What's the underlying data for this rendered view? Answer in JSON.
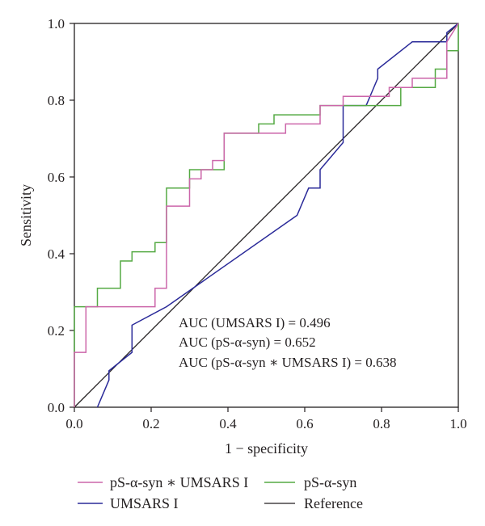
{
  "chart_data": {
    "type": "line",
    "title": "",
    "xlabel": "1 − specificity",
    "ylabel": "Sensitivity",
    "xlim": [
      0,
      1
    ],
    "ylim": [
      0,
      1
    ],
    "x_ticks": [
      0.0,
      0.2,
      0.4,
      0.6,
      0.8,
      1.0
    ],
    "y_ticks": [
      0.0,
      0.2,
      0.4,
      0.6,
      0.8,
      1.0
    ],
    "x_tick_labels": [
      "0.0",
      "0.2",
      "0.4",
      "0.6",
      "0.8",
      "1.0"
    ],
    "y_tick_labels": [
      "0.0",
      "0.2",
      "0.4",
      "0.6",
      "0.8",
      "1.0"
    ],
    "grid": false,
    "legend_position": "bottom",
    "annotations": [
      "AUC (UMSARS I) = 0.496",
      "AUC (pS-α-syn) = 0.652",
      "AUC (pS-α-syn ∗ UMSARS I) = 0.638"
    ],
    "series": [
      {
        "name": "pS-α-syn ∗ UMSARS I",
        "color": "#cc66aa",
        "x": [
          0,
          0,
          0.03,
          0.03,
          0.21,
          0.21,
          0.24,
          0.24,
          0.3,
          0.3,
          0.33,
          0.33,
          0.36,
          0.36,
          0.39,
          0.39,
          0.55,
          0.55,
          0.64,
          0.64,
          0.7,
          0.7,
          0.82,
          0.82,
          0.88,
          0.88,
          0.97,
          0.97,
          1.0
        ],
        "y": [
          0,
          0.143,
          0.143,
          0.262,
          0.262,
          0.31,
          0.31,
          0.524,
          0.524,
          0.595,
          0.595,
          0.619,
          0.619,
          0.643,
          0.643,
          0.714,
          0.714,
          0.738,
          0.738,
          0.786,
          0.786,
          0.81,
          0.81,
          0.833,
          0.833,
          0.857,
          0.857,
          0.952,
          1.0
        ]
      },
      {
        "name": "pS-α-syn",
        "color": "#55aa44",
        "x": [
          0,
          0,
          0.06,
          0.06,
          0.12,
          0.12,
          0.15,
          0.15,
          0.21,
          0.21,
          0.24,
          0.24,
          0.3,
          0.3,
          0.39,
          0.39,
          0.48,
          0.48,
          0.52,
          0.52,
          0.64,
          0.64,
          0.85,
          0.85,
          0.94,
          0.94,
          0.97,
          0.97,
          1.0,
          1.0
        ],
        "y": [
          0,
          0.262,
          0.262,
          0.31,
          0.31,
          0.381,
          0.381,
          0.405,
          0.405,
          0.429,
          0.429,
          0.571,
          0.571,
          0.619,
          0.619,
          0.714,
          0.714,
          0.738,
          0.738,
          0.762,
          0.762,
          0.786,
          0.786,
          0.833,
          0.833,
          0.881,
          0.881,
          0.929,
          0.929,
          1.0
        ]
      },
      {
        "name": "UMSARS I",
        "color": "#2a2a99",
        "x": [
          0.06,
          0.09,
          0.09,
          0.15,
          0.15,
          0.24,
          0.58,
          0.61,
          0.61,
          0.64,
          0.64,
          0.7,
          0.7,
          0.76,
          0.79,
          0.79,
          0.88,
          0.97,
          0.97,
          1.0
        ],
        "y": [
          0,
          0.071,
          0.095,
          0.143,
          0.214,
          0.262,
          0.5,
          0.571,
          0.571,
          0.571,
          0.619,
          0.69,
          0.786,
          0.786,
          0.857,
          0.881,
          0.952,
          0.952,
          0.976,
          1.0
        ]
      },
      {
        "name": "Reference",
        "color": "#231f20",
        "x": [
          0,
          1
        ],
        "y": [
          0,
          1
        ]
      }
    ],
    "legend_order": [
      "pS-α-syn ∗ UMSARS I",
      "pS-α-syn",
      "UMSARS I",
      "Reference"
    ]
  }
}
